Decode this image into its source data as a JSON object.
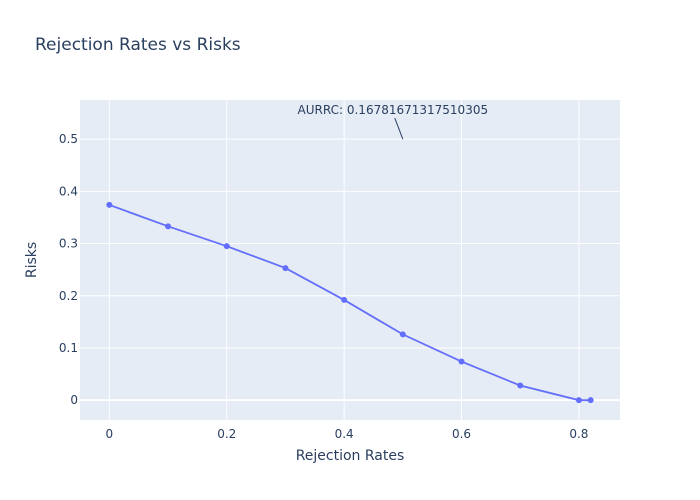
{
  "chart_data": {
    "type": "line",
    "title": "Rejection Rates vs Risks",
    "xlabel": "Rejection Rates",
    "ylabel": "Risks",
    "x": [
      0,
      0.1,
      0.2,
      0.3,
      0.4,
      0.5,
      0.6,
      0.7,
      0.8,
      0.82
    ],
    "series": [
      {
        "values": [
          0.374,
          0.333,
          0.295,
          0.253,
          0.192,
          0.126,
          0.074,
          0.028,
          0.0,
          0.0
        ]
      }
    ],
    "xlim": [
      -0.05,
      0.87
    ],
    "ylim": [
      -0.038,
      0.575
    ],
    "xticks": [
      0,
      0.2,
      0.4,
      0.6,
      0.8
    ],
    "xtick_labels": [
      "0",
      "0.2",
      "0.4",
      "0.6",
      "0.8"
    ],
    "yticks": [
      0,
      0.1,
      0.2,
      0.3,
      0.4,
      0.5
    ],
    "ytick_labels": [
      "0",
      "0.1",
      "0.2",
      "0.3",
      "0.4",
      "0.5"
    ],
    "grid": true,
    "annotation": {
      "text": "AURRC: 0.16781671317510305",
      "x": 0.5,
      "y": 0.5
    },
    "colors": {
      "line": "#636efa",
      "plot_bg": "#e5ecf6",
      "grid": "#ffffff",
      "text": "#2a3f5f"
    }
  }
}
